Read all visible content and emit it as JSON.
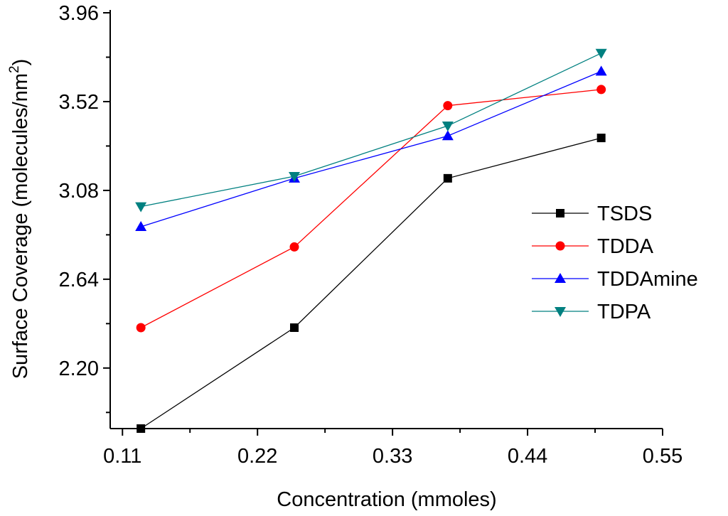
{
  "chart_data": {
    "type": "line",
    "title": "",
    "xlabel": "Concentration (mmoles)",
    "ylabel": {
      "main": "Surface Coverage (molecules/nm",
      "superscript": "2",
      "tail": ")"
    },
    "xlim": [
      0.1,
      0.55
    ],
    "ylim": [
      1.9,
      3.96
    ],
    "xticks": [
      "0.11",
      "0.22",
      "0.33",
      "0.44",
      "0.55"
    ],
    "xtick_values": [
      0.11,
      0.22,
      0.33,
      0.44,
      0.55
    ],
    "yticks": [
      "2.20",
      "2.64",
      "3.08",
      "3.52",
      "3.96"
    ],
    "ytick_values": [
      2.2,
      2.64,
      3.08,
      3.52,
      3.96
    ],
    "grid": false,
    "legend_position": "right",
    "x": [
      0.125,
      0.25,
      0.375,
      0.5
    ],
    "series": [
      {
        "name": "TSDS",
        "marker": "square",
        "color": "#000000",
        "values": [
          1.9,
          2.4,
          3.14,
          3.34
        ]
      },
      {
        "name": "TDDA",
        "marker": "circle",
        "color": "#ff0000",
        "values": [
          2.4,
          2.8,
          3.5,
          3.58
        ]
      },
      {
        "name": "TDDAmine",
        "marker": "triangle-up",
        "color": "#0000ff",
        "values": [
          2.9,
          3.14,
          3.35,
          3.67
        ]
      },
      {
        "name": "TDPA",
        "marker": "triangle-down",
        "color": "#008080",
        "values": [
          3.0,
          3.15,
          3.4,
          3.76
        ]
      }
    ]
  }
}
